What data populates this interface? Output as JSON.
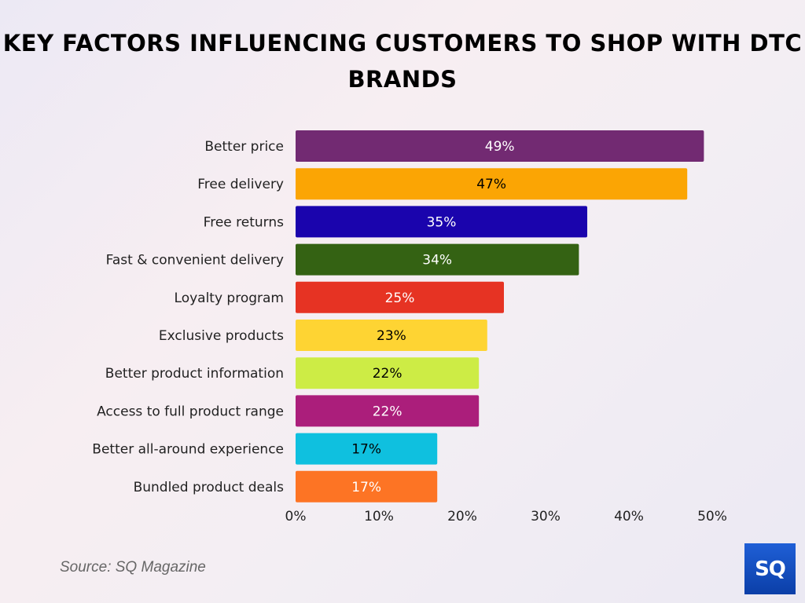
{
  "chart_data": {
    "type": "bar",
    "orientation": "horizontal",
    "title": "KEY FACTORS INFLUENCING CUSTOMERS TO SHOP WITH DTC BRANDS",
    "categories": [
      "Better price",
      "Free delivery",
      "Free returns",
      "Fast & convenient delivery",
      "Loyalty program",
      "Exclusive products",
      "Better product information",
      "Access to full product range",
      "Better all-around experience",
      "Bundled product deals"
    ],
    "values": [
      49,
      47,
      35,
      34,
      25,
      23,
      22,
      22,
      17,
      17
    ],
    "data_labels": [
      "49%",
      "47%",
      "35%",
      "34%",
      "25%",
      "23%",
      "22%",
      "22%",
      "17%",
      "17%"
    ],
    "colors": [
      "#722a72",
      "#fba504",
      "#1a04ad",
      "#346213",
      "#e63323",
      "#fed433",
      "#cdec45",
      "#ab1e7b",
      "#0fc0df",
      "#fd7424"
    ],
    "label_colors": [
      "#ffffff",
      "#000000",
      "#ffffff",
      "#ffffff",
      "#ffffff",
      "#000000",
      "#000000",
      "#ffffff",
      "#000000",
      "#ffffff"
    ],
    "xlim": [
      0,
      50
    ],
    "xticks": [
      "0%",
      "10%",
      "20%",
      "30%",
      "40%",
      "50%"
    ],
    "xtick_values": [
      0,
      10,
      20,
      30,
      40,
      50
    ],
    "grid": false,
    "legend": "none"
  },
  "footer": {
    "source": "Source: SQ Magazine",
    "logo_text": "SQ"
  }
}
